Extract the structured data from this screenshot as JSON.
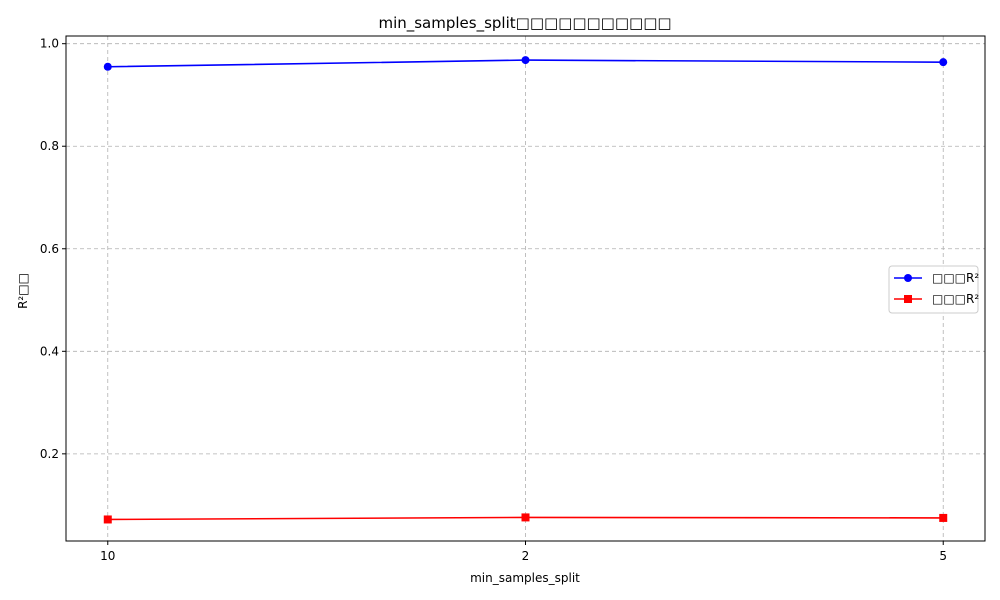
{
  "chart_data": {
    "type": "line",
    "title": "min_samples_split□□□□□□□□□□□",
    "xlabel": "min_samples_split",
    "ylabel": "R²□□",
    "categories": [
      "10",
      "2",
      "5"
    ],
    "ylim": [
      0.03,
      1.015
    ],
    "yticks": [
      0.2,
      0.4,
      0.6,
      0.8,
      1.0
    ],
    "grid": true,
    "legend_position": "center-right",
    "series": [
      {
        "name": "□□□R²",
        "values": [
          0.955,
          0.968,
          0.964
        ],
        "color": "#0000ff",
        "marker": "circle"
      },
      {
        "name": "□□□R²",
        "values": [
          0.072,
          0.076,
          0.075
        ],
        "color": "#ff0000",
        "marker": "square"
      }
    ]
  }
}
